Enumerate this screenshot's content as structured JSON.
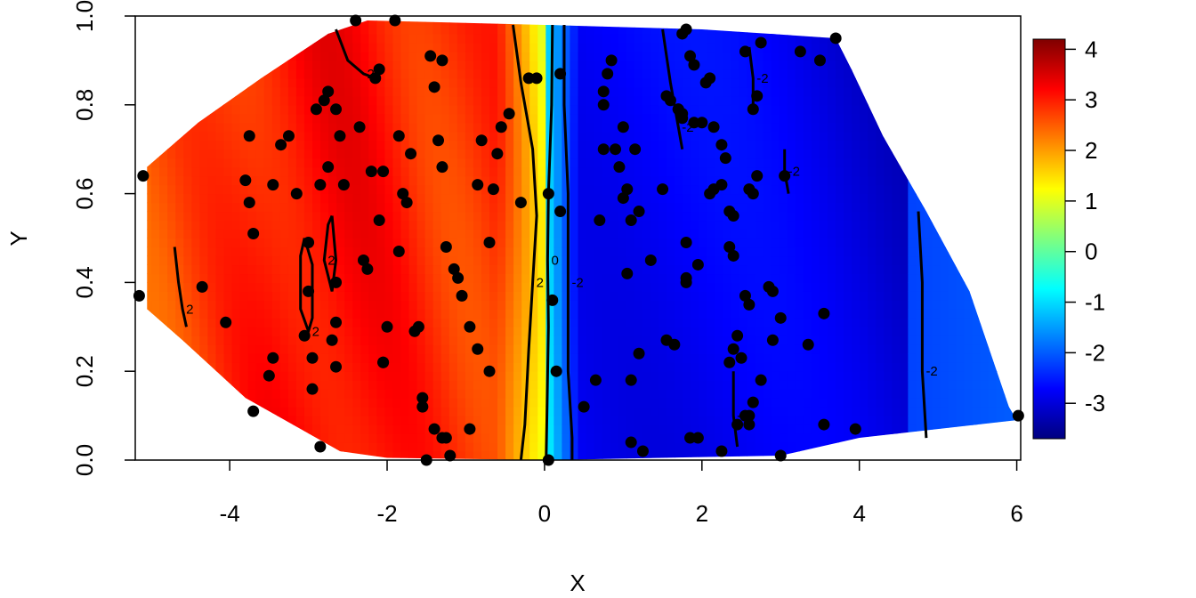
{
  "chart_data": {
    "type": "heatmap",
    "title": "",
    "xlabel": "X",
    "ylabel": "Y",
    "xlim": [
      -5.2,
      6.05
    ],
    "ylim": [
      0.0,
      1.0
    ],
    "x_ticks": [
      -4,
      -2,
      0,
      2,
      4,
      6
    ],
    "x_tick_labels": [
      "-4",
      "-2",
      "0",
      "2",
      "4",
      "6"
    ],
    "y_ticks": [
      0.0,
      0.2,
      0.4,
      0.6,
      0.8,
      1.0
    ],
    "y_tick_labels": [
      "0.0",
      "0.2",
      "0.4",
      "0.6",
      "0.8",
      "1.0"
    ],
    "colorbar": {
      "range": [
        -3.7,
        4.2
      ],
      "ticks": [
        4,
        3,
        2,
        1,
        0,
        -1,
        -2,
        -3
      ],
      "tick_labels": [
        "4",
        "3",
        "2",
        "1",
        "0",
        "-1",
        "-2",
        "-3"
      ],
      "colors": [
        "#00007f",
        "#0000ff",
        "#007fff",
        "#00ffff",
        "#7fff7f",
        "#ffff00",
        "#ff7f00",
        "#ff0000",
        "#7f0000"
      ]
    },
    "surface_hull": [
      [
        -5.05,
        0.66
      ],
      [
        -4.4,
        0.76
      ],
      [
        -3.6,
        0.86
      ],
      [
        -2.75,
        0.96
      ],
      [
        -2.25,
        0.99
      ],
      [
        0.0,
        0.98
      ],
      [
        2.0,
        0.97
      ],
      [
        3.7,
        0.95
      ],
      [
        3.9,
        0.88
      ],
      [
        4.3,
        0.73
      ],
      [
        4.85,
        0.56
      ],
      [
        5.4,
        0.38
      ],
      [
        5.9,
        0.12
      ],
      [
        6.0,
        0.09
      ],
      [
        4.0,
        0.05
      ],
      [
        3.0,
        0.01
      ],
      [
        0.0,
        0.0
      ],
      [
        -2.0,
        0.005
      ],
      [
        -2.6,
        0.02
      ],
      [
        -3.8,
        0.14
      ],
      [
        -4.6,
        0.27
      ],
      [
        -5.05,
        0.34
      ]
    ],
    "contours": [
      {
        "level": "0",
        "points": [
          [
            0.1,
            0.98
          ],
          [
            0.09,
            0.8
          ],
          [
            0.05,
            0.6
          ],
          [
            0.04,
            0.45
          ],
          [
            0.05,
            0.3
          ],
          [
            0.03,
            0.1
          ],
          [
            0.02,
            0.0
          ]
        ]
      },
      {
        "level": "2",
        "points": [
          [
            -0.4,
            0.98
          ],
          [
            -0.3,
            0.85
          ],
          [
            -0.15,
            0.7
          ],
          [
            -0.1,
            0.55
          ],
          [
            -0.15,
            0.4
          ],
          [
            -0.2,
            0.25
          ],
          [
            -0.25,
            0.08
          ],
          [
            -0.3,
            0.0
          ]
        ]
      },
      {
        "level": "-2",
        "points": [
          [
            0.25,
            0.98
          ],
          [
            0.25,
            0.8
          ],
          [
            0.3,
            0.6
          ],
          [
            0.3,
            0.4
          ],
          [
            0.3,
            0.2
          ],
          [
            0.35,
            0.05
          ],
          [
            0.35,
            0.0
          ]
        ]
      },
      {
        "level": "2",
        "points": [
          [
            -3.05,
            0.5
          ],
          [
            -2.95,
            0.44
          ],
          [
            -2.95,
            0.32
          ],
          [
            -3.0,
            0.29
          ],
          [
            -3.1,
            0.34
          ],
          [
            -3.1,
            0.46
          ],
          [
            -3.05,
            0.5
          ]
        ]
      },
      {
        "level": "2",
        "points": [
          [
            -2.7,
            0.55
          ],
          [
            -2.65,
            0.45
          ],
          [
            -2.7,
            0.38
          ],
          [
            -2.8,
            0.45
          ],
          [
            -2.75,
            0.53
          ],
          [
            -2.7,
            0.55
          ]
        ]
      },
      {
        "level": "2",
        "points": [
          [
            -2.65,
            0.97
          ],
          [
            -2.5,
            0.9
          ],
          [
            -2.3,
            0.87
          ],
          [
            -2.15,
            0.86
          ]
        ]
      },
      {
        "level": "2",
        "points": [
          [
            -4.7,
            0.48
          ],
          [
            -4.65,
            0.4
          ],
          [
            -4.6,
            0.34
          ],
          [
            -4.55,
            0.3
          ]
        ]
      },
      {
        "level": "-2",
        "points": [
          [
            1.5,
            0.97
          ],
          [
            1.6,
            0.85
          ],
          [
            1.7,
            0.75
          ],
          [
            1.75,
            0.7
          ]
        ]
      },
      {
        "level": "-2",
        "points": [
          [
            2.6,
            0.93
          ],
          [
            2.65,
            0.86
          ],
          [
            2.65,
            0.8
          ]
        ]
      },
      {
        "level": "-2",
        "points": [
          [
            3.05,
            0.7
          ],
          [
            3.05,
            0.65
          ],
          [
            3.1,
            0.6
          ]
        ]
      },
      {
        "level": "-2",
        "points": [
          [
            2.4,
            0.2
          ],
          [
            2.4,
            0.1
          ],
          [
            2.45,
            0.03
          ]
        ]
      },
      {
        "level": "-2",
        "points": [
          [
            4.75,
            0.56
          ],
          [
            4.8,
            0.4
          ],
          [
            4.8,
            0.2
          ],
          [
            4.85,
            0.05
          ]
        ]
      }
    ],
    "points": [
      [
        -5.1,
        0.64
      ],
      [
        -5.15,
        0.37
      ],
      [
        -4.35,
        0.39
      ],
      [
        -4.05,
        0.31
      ],
      [
        -3.75,
        0.73
      ],
      [
        -3.8,
        0.63
      ],
      [
        -3.75,
        0.58
      ],
      [
        -3.7,
        0.51
      ],
      [
        -3.7,
        0.11
      ],
      [
        -3.5,
        0.19
      ],
      [
        -3.45,
        0.23
      ],
      [
        -3.45,
        0.62
      ],
      [
        -3.35,
        0.71
      ],
      [
        -3.25,
        0.73
      ],
      [
        -3.15,
        0.6
      ],
      [
        -3.0,
        0.49
      ],
      [
        -3.0,
        0.38
      ],
      [
        -3.05,
        0.28
      ],
      [
        -2.95,
        0.23
      ],
      [
        -2.95,
        0.16
      ],
      [
        -2.85,
        0.03
      ],
      [
        -2.9,
        0.79
      ],
      [
        -2.8,
        0.81
      ],
      [
        -2.75,
        0.83
      ],
      [
        -2.75,
        0.66
      ],
      [
        -2.85,
        0.62
      ],
      [
        -2.65,
        0.4
      ],
      [
        -2.7,
        0.27
      ],
      [
        -2.65,
        0.31
      ],
      [
        -2.65,
        0.21
      ],
      [
        -2.65,
        0.79
      ],
      [
        -2.6,
        0.73
      ],
      [
        -2.55,
        0.62
      ],
      [
        -2.4,
        0.99
      ],
      [
        -2.35,
        0.75
      ],
      [
        -2.3,
        0.45
      ],
      [
        -2.25,
        0.43
      ],
      [
        -2.2,
        0.65
      ],
      [
        -2.15,
        0.86
      ],
      [
        -2.1,
        0.88
      ],
      [
        -2.05,
        0.65
      ],
      [
        -2.1,
        0.54
      ],
      [
        -2.05,
        0.22
      ],
      [
        -2.0,
        0.3
      ],
      [
        -2.05,
        0.22
      ],
      [
        -1.9,
        0.99
      ],
      [
        -1.85,
        0.73
      ],
      [
        -1.8,
        0.6
      ],
      [
        -1.75,
        0.58
      ],
      [
        -1.85,
        0.47
      ],
      [
        -1.7,
        0.69
      ],
      [
        -1.65,
        0.29
      ],
      [
        -1.6,
        0.3
      ],
      [
        -1.55,
        0.14
      ],
      [
        -1.55,
        0.12
      ],
      [
        -1.5,
        0.0
      ],
      [
        -1.4,
        0.07
      ],
      [
        -1.3,
        0.05
      ],
      [
        -1.25,
        0.05
      ],
      [
        -1.2,
        0.01
      ],
      [
        -1.45,
        0.91
      ],
      [
        -1.4,
        0.84
      ],
      [
        -1.3,
        0.9
      ],
      [
        -1.3,
        0.66
      ],
      [
        -1.35,
        0.72
      ],
      [
        -1.25,
        0.48
      ],
      [
        -1.15,
        0.43
      ],
      [
        -1.1,
        0.41
      ],
      [
        -1.05,
        0.37
      ],
      [
        -0.95,
        0.3
      ],
      [
        -0.95,
        0.07
      ],
      [
        -0.85,
        0.62
      ],
      [
        -0.8,
        0.72
      ],
      [
        -0.85,
        0.25
      ],
      [
        -0.7,
        0.2
      ],
      [
        -0.7,
        0.49
      ],
      [
        -0.65,
        0.61
      ],
      [
        -0.6,
        0.69
      ],
      [
        -0.55,
        0.75
      ],
      [
        -0.45,
        0.78
      ],
      [
        -0.3,
        0.58
      ],
      [
        -0.2,
        0.86
      ],
      [
        -0.1,
        0.86
      ],
      [
        0.05,
        0.6
      ],
      [
        0.1,
        0.36
      ],
      [
        0.15,
        0.2
      ],
      [
        0.05,
        0.0
      ],
      [
        0.2,
        0.56
      ],
      [
        0.2,
        0.87
      ],
      [
        0.5,
        0.12
      ],
      [
        0.65,
        0.18
      ],
      [
        0.7,
        0.54
      ],
      [
        0.75,
        0.7
      ],
      [
        0.75,
        0.8
      ],
      [
        0.8,
        0.87
      ],
      [
        0.75,
        0.83
      ],
      [
        0.85,
        0.9
      ],
      [
        0.9,
        0.7
      ],
      [
        0.95,
        0.66
      ],
      [
        1.0,
        0.59
      ],
      [
        1.0,
        0.75
      ],
      [
        1.05,
        0.61
      ],
      [
        1.05,
        0.42
      ],
      [
        1.1,
        0.54
      ],
      [
        1.1,
        0.18
      ],
      [
        1.15,
        0.7
      ],
      [
        1.2,
        0.56
      ],
      [
        1.1,
        0.04
      ],
      [
        1.25,
        0.02
      ],
      [
        1.2,
        0.24
      ],
      [
        1.35,
        0.45
      ],
      [
        1.55,
        0.27
      ],
      [
        1.65,
        0.26
      ],
      [
        1.55,
        0.82
      ],
      [
        1.6,
        0.81
      ],
      [
        1.5,
        0.61
      ],
      [
        1.7,
        0.79
      ],
      [
        1.75,
        0.78
      ],
      [
        1.7,
        0.79
      ],
      [
        1.75,
        0.77
      ],
      [
        1.75,
        0.96
      ],
      [
        1.8,
        0.97
      ],
      [
        1.85,
        0.91
      ],
      [
        1.9,
        0.89
      ],
      [
        1.9,
        0.76
      ],
      [
        1.8,
        0.4
      ],
      [
        1.8,
        0.49
      ],
      [
        1.8,
        0.41
      ],
      [
        1.95,
        0.44
      ],
      [
        1.95,
        0.05
      ],
      [
        1.85,
        0.05
      ],
      [
        2.0,
        0.76
      ],
      [
        2.05,
        0.85
      ],
      [
        2.1,
        0.6
      ],
      [
        2.15,
        0.61
      ],
      [
        2.1,
        0.86
      ],
      [
        2.15,
        0.75
      ],
      [
        2.25,
        0.71
      ],
      [
        2.25,
        0.62
      ],
      [
        2.3,
        0.68
      ],
      [
        2.35,
        0.56
      ],
      [
        2.35,
        0.48
      ],
      [
        2.4,
        0.55
      ],
      [
        2.4,
        0.46
      ],
      [
        2.35,
        0.22
      ],
      [
        2.4,
        0.25
      ],
      [
        2.45,
        0.28
      ],
      [
        2.5,
        0.23
      ],
      [
        2.55,
        0.92
      ],
      [
        2.55,
        0.37
      ],
      [
        2.6,
        0.35
      ],
      [
        2.6,
        0.61
      ],
      [
        2.65,
        0.79
      ],
      [
        2.65,
        0.6
      ],
      [
        2.7,
        0.82
      ],
      [
        2.7,
        0.64
      ],
      [
        2.75,
        0.94
      ],
      [
        2.75,
        0.18
      ],
      [
        2.65,
        0.13
      ],
      [
        2.6,
        0.1
      ],
      [
        2.6,
        0.08
      ],
      [
        2.55,
        0.1
      ],
      [
        2.45,
        0.08
      ],
      [
        2.25,
        0.02
      ],
      [
        2.85,
        0.39
      ],
      [
        2.9,
        0.38
      ],
      [
        2.9,
        0.27
      ],
      [
        3.0,
        0.32
      ],
      [
        3.0,
        0.01
      ],
      [
        3.05,
        0.64
      ],
      [
        3.25,
        0.92
      ],
      [
        3.35,
        0.26
      ],
      [
        3.5,
        0.9
      ],
      [
        3.55,
        0.08
      ],
      [
        3.55,
        0.33
      ],
      [
        3.7,
        0.95
      ],
      [
        3.95,
        0.07
      ],
      [
        6.02,
        0.1
      ]
    ]
  }
}
